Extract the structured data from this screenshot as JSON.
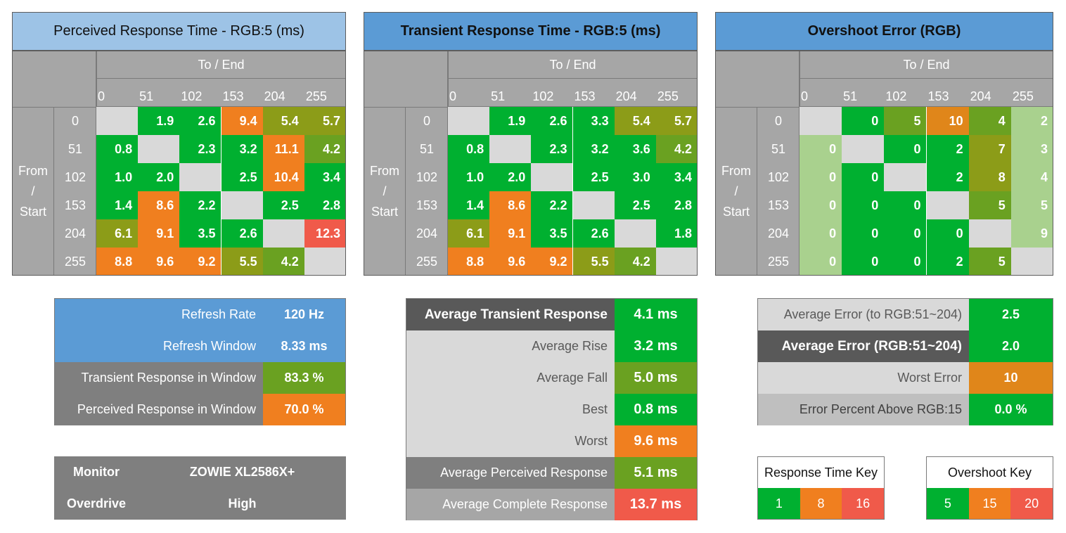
{
  "colors": {
    "green": "#00b030",
    "light_green": "#a9d18e",
    "olive": "#6aa121",
    "olive_dark": "#8c9c18",
    "orange": "#f07f1f",
    "orange_dark": "#e0861a",
    "red": "#f05a4a",
    "diag": "#d9d9d9",
    "header_grey": "#a6a6a6",
    "title_light_blue": "#9dc3e6",
    "title_blue": "#5b9bd5"
  },
  "panels": [
    {
      "title": "Perceived Response Time - RGB:5 (ms)",
      "to_label": "To / End",
      "from_label": [
        "From",
        "/",
        "Start"
      ],
      "levels": [
        "0",
        "51",
        "102",
        "153",
        "204",
        "255"
      ],
      "rows": [
        [
          {
            "v": "",
            "c": "diag"
          },
          {
            "v": "1.9",
            "c": "green"
          },
          {
            "v": "2.6",
            "c": "green"
          },
          {
            "v": "9.4",
            "c": "orange"
          },
          {
            "v": "5.4",
            "c": "olive_dark"
          },
          {
            "v": "5.7",
            "c": "olive_dark"
          }
        ],
        [
          {
            "v": "0.8",
            "c": "green"
          },
          {
            "v": "",
            "c": "diag"
          },
          {
            "v": "2.3",
            "c": "green"
          },
          {
            "v": "3.2",
            "c": "green"
          },
          {
            "v": "11.1",
            "c": "orange"
          },
          {
            "v": "4.2",
            "c": "olive"
          }
        ],
        [
          {
            "v": "1.0",
            "c": "green"
          },
          {
            "v": "2.0",
            "c": "green"
          },
          {
            "v": "",
            "c": "diag"
          },
          {
            "v": "2.5",
            "c": "green"
          },
          {
            "v": "10.4",
            "c": "orange"
          },
          {
            "v": "3.4",
            "c": "green"
          }
        ],
        [
          {
            "v": "1.4",
            "c": "green"
          },
          {
            "v": "8.6",
            "c": "orange"
          },
          {
            "v": "2.2",
            "c": "green"
          },
          {
            "v": "",
            "c": "diag"
          },
          {
            "v": "2.5",
            "c": "green"
          },
          {
            "v": "2.8",
            "c": "green"
          }
        ],
        [
          {
            "v": "6.1",
            "c": "olive_dark"
          },
          {
            "v": "9.1",
            "c": "orange"
          },
          {
            "v": "3.5",
            "c": "green"
          },
          {
            "v": "2.6",
            "c": "green"
          },
          {
            "v": "",
            "c": "diag"
          },
          {
            "v": "12.3",
            "c": "red"
          }
        ],
        [
          {
            "v": "8.8",
            "c": "orange"
          },
          {
            "v": "9.6",
            "c": "orange"
          },
          {
            "v": "9.2",
            "c": "orange"
          },
          {
            "v": "5.5",
            "c": "olive_dark"
          },
          {
            "v": "4.2",
            "c": "olive"
          },
          {
            "v": "",
            "c": "diag"
          }
        ]
      ]
    },
    {
      "title": "Transient Response Time - RGB:5 (ms)",
      "to_label": "To / End",
      "from_label": [
        "From",
        "/",
        "Start"
      ],
      "levels": [
        "0",
        "51",
        "102",
        "153",
        "204",
        "255"
      ],
      "rows": [
        [
          {
            "v": "",
            "c": "diag"
          },
          {
            "v": "1.9",
            "c": "green"
          },
          {
            "v": "2.6",
            "c": "green"
          },
          {
            "v": "3.3",
            "c": "green"
          },
          {
            "v": "5.4",
            "c": "olive_dark"
          },
          {
            "v": "5.7",
            "c": "olive_dark"
          }
        ],
        [
          {
            "v": "0.8",
            "c": "green"
          },
          {
            "v": "",
            "c": "diag"
          },
          {
            "v": "2.3",
            "c": "green"
          },
          {
            "v": "3.2",
            "c": "green"
          },
          {
            "v": "3.6",
            "c": "green"
          },
          {
            "v": "4.2",
            "c": "olive"
          }
        ],
        [
          {
            "v": "1.0",
            "c": "green"
          },
          {
            "v": "2.0",
            "c": "green"
          },
          {
            "v": "",
            "c": "diag"
          },
          {
            "v": "2.5",
            "c": "green"
          },
          {
            "v": "3.0",
            "c": "green"
          },
          {
            "v": "3.4",
            "c": "green"
          }
        ],
        [
          {
            "v": "1.4",
            "c": "green"
          },
          {
            "v": "8.6",
            "c": "orange"
          },
          {
            "v": "2.2",
            "c": "green"
          },
          {
            "v": "",
            "c": "diag"
          },
          {
            "v": "2.5",
            "c": "green"
          },
          {
            "v": "2.8",
            "c": "green"
          }
        ],
        [
          {
            "v": "6.1",
            "c": "olive_dark"
          },
          {
            "v": "9.1",
            "c": "orange"
          },
          {
            "v": "3.5",
            "c": "green"
          },
          {
            "v": "2.6",
            "c": "green"
          },
          {
            "v": "",
            "c": "diag"
          },
          {
            "v": "1.8",
            "c": "green"
          }
        ],
        [
          {
            "v": "8.8",
            "c": "orange"
          },
          {
            "v": "9.6",
            "c": "orange"
          },
          {
            "v": "9.2",
            "c": "orange"
          },
          {
            "v": "5.5",
            "c": "olive_dark"
          },
          {
            "v": "4.2",
            "c": "olive"
          },
          {
            "v": "",
            "c": "diag"
          }
        ]
      ]
    },
    {
      "title": "Overshoot Error (RGB)",
      "to_label": "To / End",
      "from_label": [
        "From",
        "/",
        "Start"
      ],
      "levels": [
        "0",
        "51",
        "102",
        "153",
        "204",
        "255"
      ],
      "rows": [
        [
          {
            "v": "",
            "c": "diag"
          },
          {
            "v": "0",
            "c": "green"
          },
          {
            "v": "5",
            "c": "olive"
          },
          {
            "v": "10",
            "c": "orange_dark"
          },
          {
            "v": "4",
            "c": "olive"
          },
          {
            "v": "2",
            "c": "light_green"
          }
        ],
        [
          {
            "v": "0",
            "c": "light_green"
          },
          {
            "v": "",
            "c": "diag"
          },
          {
            "v": "0",
            "c": "green"
          },
          {
            "v": "2",
            "c": "green"
          },
          {
            "v": "7",
            "c": "olive_dark"
          },
          {
            "v": "3",
            "c": "light_green"
          }
        ],
        [
          {
            "v": "0",
            "c": "light_green"
          },
          {
            "v": "0",
            "c": "green"
          },
          {
            "v": "",
            "c": "diag"
          },
          {
            "v": "2",
            "c": "green"
          },
          {
            "v": "8",
            "c": "olive_dark"
          },
          {
            "v": "4",
            "c": "light_green"
          }
        ],
        [
          {
            "v": "0",
            "c": "light_green"
          },
          {
            "v": "0",
            "c": "green"
          },
          {
            "v": "0",
            "c": "green"
          },
          {
            "v": "",
            "c": "diag"
          },
          {
            "v": "5",
            "c": "olive"
          },
          {
            "v": "5",
            "c": "light_green"
          }
        ],
        [
          {
            "v": "0",
            "c": "light_green"
          },
          {
            "v": "0",
            "c": "green"
          },
          {
            "v": "0",
            "c": "green"
          },
          {
            "v": "0",
            "c": "green"
          },
          {
            "v": "",
            "c": "diag"
          },
          {
            "v": "9",
            "c": "light_green"
          }
        ],
        [
          {
            "v": "0",
            "c": "light_green"
          },
          {
            "v": "0",
            "c": "green"
          },
          {
            "v": "0",
            "c": "green"
          },
          {
            "v": "2",
            "c": "green"
          },
          {
            "v": "5",
            "c": "olive"
          },
          {
            "v": "",
            "c": "diag"
          }
        ]
      ]
    }
  ],
  "refresh_table": {
    "rows": [
      {
        "label": "Refresh Rate",
        "value": "120 Hz",
        "kbg": "#5b9bd5",
        "vbg": "#5b9bd5"
      },
      {
        "label": "Refresh Window",
        "value": "8.33 ms",
        "kbg": "#5b9bd5",
        "vbg": "#5b9bd5"
      },
      {
        "label": "Transient Response in Window",
        "value": "83.3 %",
        "kbg": "#7f7f7f",
        "vbg": "#6aa121"
      },
      {
        "label": "Perceived Response in Window",
        "value": "70.0 %",
        "kbg": "#7f7f7f",
        "vbg": "#f07f1f"
      }
    ]
  },
  "monitor_table": {
    "monitor_label": "Monitor",
    "monitor_value": "ZOWIE XL2586X+",
    "overdrive_label": "Overdrive",
    "overdrive_value": "High"
  },
  "averages_table": {
    "rows": [
      {
        "label": "Average Transient Response",
        "value": "4.1 ms",
        "kbg": "#595959",
        "kcolor": "#ffffff",
        "bold": true,
        "vbg": "#00b030"
      },
      {
        "label": "Average Rise",
        "value": "3.2 ms",
        "kbg": "#d9d9d9",
        "kcolor": "#595959",
        "bold": false,
        "vbg": "#00b030"
      },
      {
        "label": "Average Fall",
        "value": "5.0 ms",
        "kbg": "#d9d9d9",
        "kcolor": "#595959",
        "bold": false,
        "vbg": "#6aa121"
      },
      {
        "label": "Best",
        "value": "0.8 ms",
        "kbg": "#d9d9d9",
        "kcolor": "#595959",
        "bold": false,
        "vbg": "#00b030"
      },
      {
        "label": "Worst",
        "value": "9.6 ms",
        "kbg": "#d9d9d9",
        "kcolor": "#595959",
        "bold": false,
        "vbg": "#f07f1f"
      },
      {
        "label": "Average Perceived Response",
        "value": "5.1 ms",
        "kbg": "#7f7f7f",
        "kcolor": "#ffffff",
        "bold": false,
        "vbg": "#6aa121"
      },
      {
        "label": "Average Complete Response",
        "value": "13.7 ms",
        "kbg": "#a6a6a6",
        "kcolor": "#ffffff",
        "bold": false,
        "vbg": "#f05a4a"
      }
    ]
  },
  "error_table": {
    "rows": [
      {
        "label": "Average Error (to RGB:51~204)",
        "value": "2.5",
        "kbg": "#d9d9d9",
        "kcolor": "#595959",
        "bold": false,
        "vbg": "#00b030"
      },
      {
        "label": "Average Error (RGB:51~204)",
        "value": "2.0",
        "kbg": "#595959",
        "kcolor": "#ffffff",
        "bold": true,
        "vbg": "#00b030"
      },
      {
        "label": "Worst Error",
        "value": "10",
        "kbg": "#d9d9d9",
        "kcolor": "#595959",
        "bold": false,
        "vbg": "#e0861a"
      },
      {
        "label": "Error Percent Above RGB:15",
        "value": "0.0 %",
        "kbg": "#bfbfbf",
        "kcolor": "#404040",
        "bold": false,
        "vbg": "#00b030"
      }
    ]
  },
  "response_key": {
    "title": "Response Time Key",
    "values": [
      "1",
      "8",
      "16"
    ],
    "colors": [
      "#00b030",
      "#f07f1f",
      "#f05a4a"
    ]
  },
  "overshoot_key": {
    "title": "Overshoot Key",
    "values": [
      "5",
      "15",
      "20"
    ],
    "colors": [
      "#00b030",
      "#f07f1f",
      "#f05a4a"
    ]
  }
}
